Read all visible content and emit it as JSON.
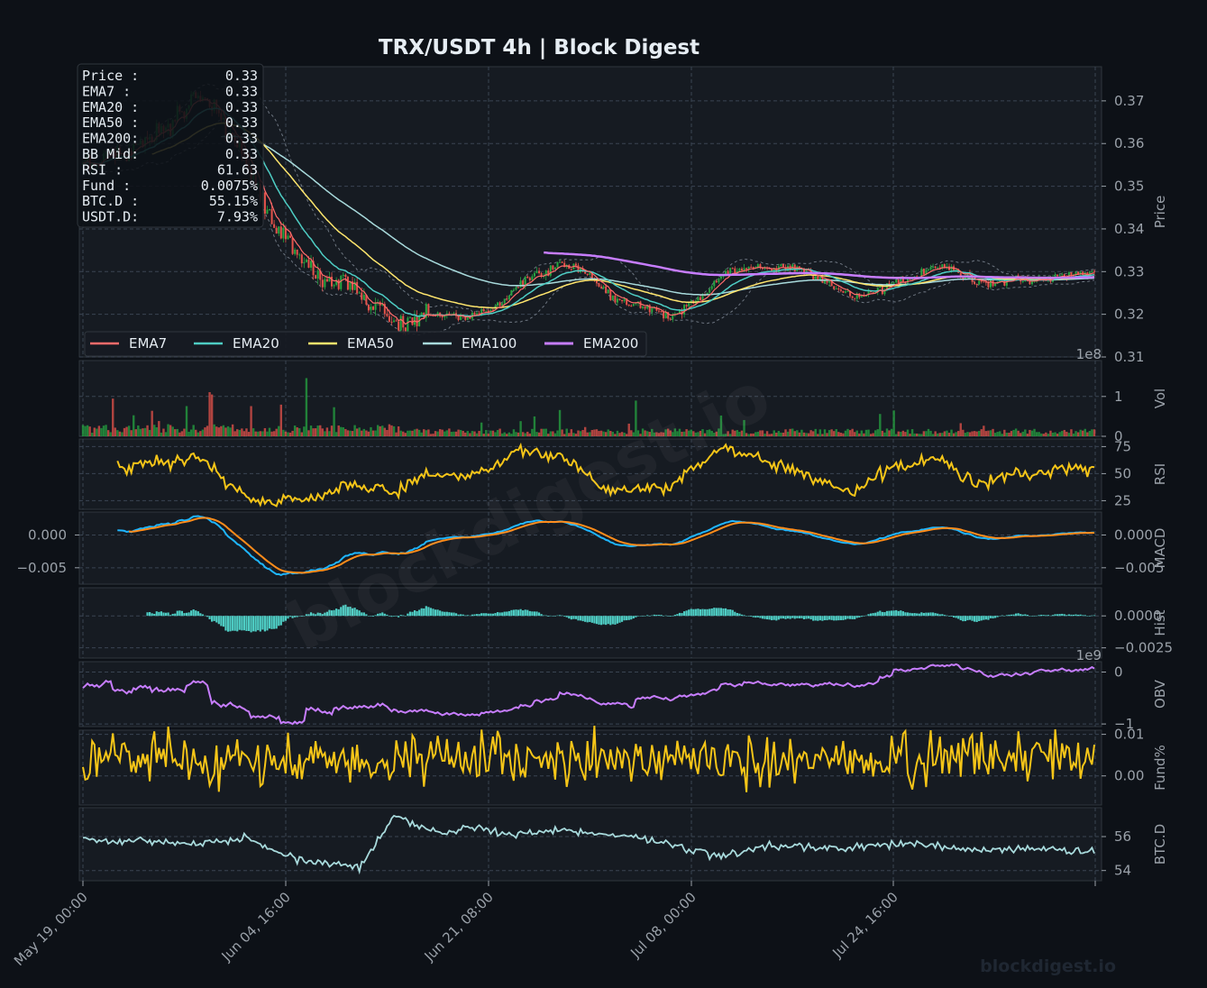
{
  "header": {
    "title": "TRX/USDT  4h  |  Block Digest"
  },
  "watermark": {
    "center_text": "blockdigest.io",
    "corner_text": "blockdigest.io"
  },
  "colors": {
    "background": "#0d1117",
    "panel": "#161b22",
    "grid": "#3a4452",
    "axis_text": "#9aa1a9",
    "up": "#26a641",
    "down": "#e5534b",
    "ema7": "#ff6b6b",
    "ema20": "#4ecdc4",
    "ema50": "#ffe66d",
    "ema100": "#a8dadc",
    "ema200": "#c77dff",
    "rsi": "#f5c518",
    "macd": "#1fb6ff",
    "signal": "#ff8c1a",
    "hist": "#4ecdc4",
    "obv": "#c77dff",
    "funding": "#f5c518",
    "btcd": "#a8dadc"
  },
  "info_box": {
    "rows": [
      {
        "label": "Price :",
        "value": "0.33"
      },
      {
        "label": "EMA7  :",
        "value": "0.33"
      },
      {
        "label": "EMA20 :",
        "value": "0.33"
      },
      {
        "label": "EMA50 :",
        "value": "0.33"
      },
      {
        "label": "EMA200:",
        "value": "0.33"
      },
      {
        "label": "BB Mid:",
        "value": "0.33"
      },
      {
        "label": "RSI   :",
        "value": "61.63"
      },
      {
        "label": "Fund  :",
        "value": "0.0075%"
      },
      {
        "label": "BTC.D :",
        "value": "55.15%"
      },
      {
        "label": "USDT.D:",
        "value": "7.93%"
      }
    ]
  },
  "chart_data": {
    "type": "line",
    "title": "TRX/USDT  4h  |  Block Digest",
    "x_range": [
      "May 19, 00:00",
      "Jul 31, 00:00"
    ],
    "x_ticks": [
      "May 19, 00:00",
      "Jun 04, 16:00",
      "Jun 21, 08:00",
      "Jul 08, 00:00",
      "Jul 24, 16:00"
    ],
    "legend": {
      "placement": "lower-left",
      "entries": [
        "EMA7",
        "EMA20",
        "EMA50",
        "EMA100",
        "EMA200"
      ]
    },
    "panels": {
      "price": {
        "ylabel": "Price",
        "ylim": [
          0.31,
          0.378
        ],
        "yticks": [
          0.31,
          0.32,
          0.33,
          0.34,
          0.35,
          0.36,
          0.37
        ],
        "ytick_labels": [
          "0.31",
          "0.32",
          "0.33",
          "0.34",
          "0.35",
          "0.36",
          "0.37"
        ],
        "candles": {
          "count": 440,
          "first_close": 0.355,
          "last_close": 0.3295
        },
        "ema200_start_index": 200
      },
      "volume": {
        "ylabel": "Vol",
        "scale_label": "1e8",
        "ylim": [
          0,
          1.9
        ],
        "yticks": [
          0,
          1
        ],
        "ytick_labels": [
          "0",
          "1"
        ]
      },
      "rsi": {
        "ylabel": "RSI",
        "ylim": [
          17,
          82
        ],
        "yticks": [
          25,
          50,
          75
        ],
        "ytick_labels": [
          "25",
          "50",
          "75"
        ]
      },
      "macd": {
        "ylabel": "MACD",
        "ylim": [
          -0.0075,
          0.0035
        ],
        "yticks": [
          -0.005,
          0.0
        ],
        "ytick_labels": [
          "−0.005",
          "0.000"
        ],
        "left_axis": true
      },
      "hist": {
        "ylabel": "Hist",
        "ylim": [
          -0.0033,
          0.0022
        ],
        "yticks": [
          -0.0025,
          0.0
        ],
        "ytick_labels": [
          "−0.0025",
          "0.0000"
        ]
      },
      "obv": {
        "ylabel": "OBV",
        "scale_label": "1e9",
        "ylim": [
          -1.05,
          0.2
        ],
        "yticks": [
          -1,
          0
        ],
        "ytick_labels": [
          "−1",
          "0"
        ]
      },
      "funding": {
        "ylabel": "Fund%",
        "ylim": [
          -0.007,
          0.011
        ],
        "yticks": [
          0.0,
          0.01
        ],
        "ytick_labels": [
          "0.00",
          "0.01"
        ]
      },
      "btcd": {
        "ylabel": "BTC.D",
        "ylim": [
          53.4,
          57.7
        ],
        "yticks": [
          54,
          56
        ],
        "ytick_labels": [
          "54",
          "56"
        ]
      }
    },
    "last_values": {
      "price": 0.33,
      "rsi": 61.63,
      "funding_pct": 0.0075,
      "btc_dominance_pct": 55.15,
      "usdt_dominance_pct": 7.93
    }
  }
}
